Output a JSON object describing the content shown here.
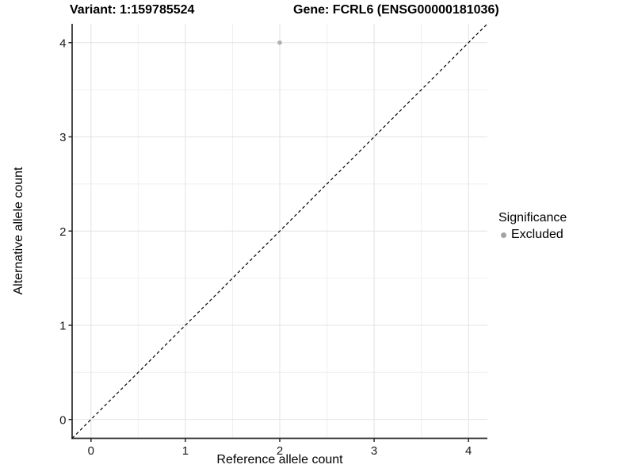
{
  "titles": {
    "variant": "Variant: 1:159785524",
    "gene": "Gene: FCRL6 (ENSG00000181036)"
  },
  "axes": {
    "x_label": "Reference allele count",
    "y_label": "Alternative allele count"
  },
  "legend": {
    "title": "Significance",
    "items": [
      {
        "label": "Excluded",
        "color": "#a3a3a3"
      }
    ]
  },
  "colors": {
    "background": "#ffffff",
    "grid_major": "#e4e4e4",
    "grid_minor": "#efefef",
    "axis_line": "#2a2a2a",
    "tick_mark": "#2a2a2a",
    "tick_text": "#1a1a1a",
    "dashed_line": "#000000",
    "point": "#b0b0b0"
  },
  "chart_data": {
    "type": "scatter",
    "title": "Variant: 1:159785524 | Gene: FCRL6 (ENSG00000181036)",
    "xlabel": "Reference allele count",
    "ylabel": "Alternative allele count",
    "xlim": [
      -0.2,
      4.2
    ],
    "ylim": [
      -0.2,
      4.2
    ],
    "x_ticks": [
      0,
      1,
      2,
      3,
      4
    ],
    "y_ticks": [
      0,
      1,
      2,
      3,
      4
    ],
    "x_minor_ticks": [
      0.5,
      1.5,
      2.5,
      3.5
    ],
    "y_minor_ticks": [
      0.5,
      1.5,
      2.5,
      3.5
    ],
    "grid": true,
    "legend_position": "right",
    "series": [
      {
        "name": "Excluded",
        "color": "#b0b0b0",
        "points": [
          [
            2,
            4
          ]
        ]
      }
    ],
    "reference_line": {
      "type": "identity y=x",
      "from": [
        -0.2,
        -0.2
      ],
      "to": [
        4.2,
        4.2
      ],
      "style": "dashed",
      "color": "#000000"
    }
  }
}
